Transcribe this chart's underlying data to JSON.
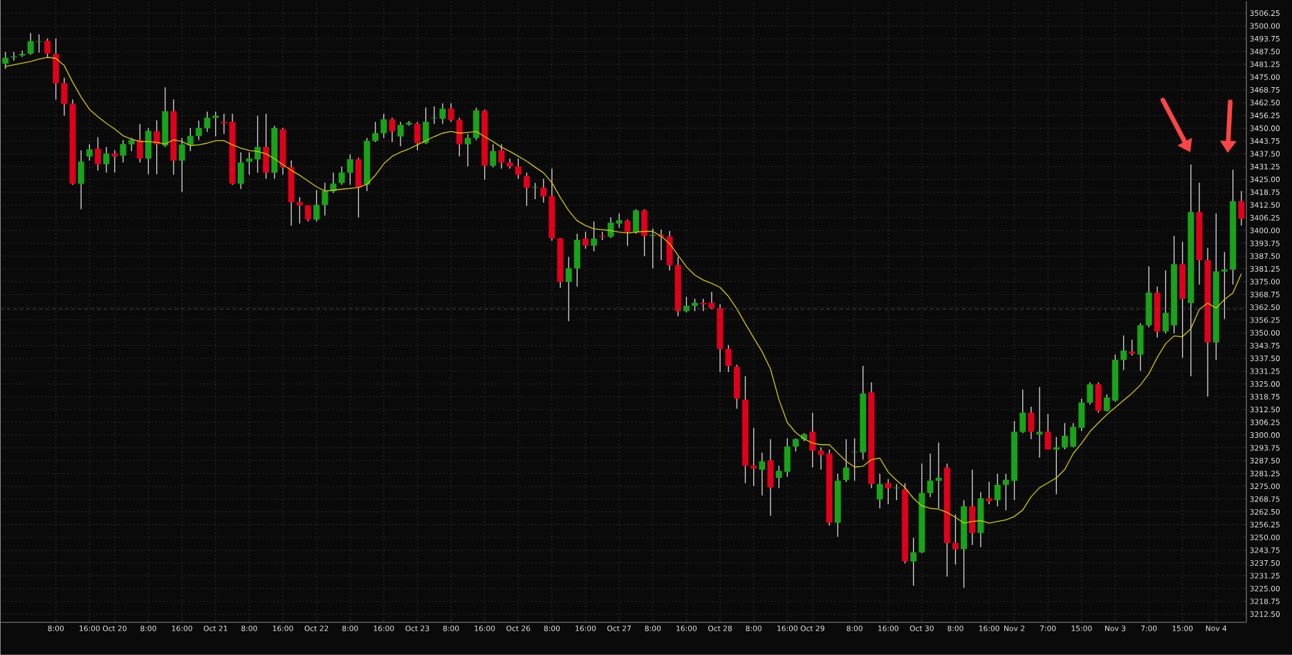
{
  "chart_data": {
    "type": "candlestick",
    "categories": [
      null,
      null,
      null,
      null,
      null,
      null,
      "8:00",
      null,
      null,
      null,
      "16:00",
      null,
      null,
      "Oct 20",
      null,
      null,
      null,
      "8:00",
      null,
      null,
      null,
      "16:00",
      null,
      null,
      null,
      "Oct 21",
      null,
      null,
      null,
      "8:00",
      null,
      null,
      null,
      "16:00",
      null,
      null,
      null,
      "Oct 22",
      null,
      null,
      null,
      "8:00",
      null,
      null,
      null,
      "16:00",
      null,
      null,
      null,
      "Oct 23",
      null,
      null,
      null,
      "8:00",
      null,
      null,
      null,
      "16:00",
      null,
      null,
      null,
      "Oct 26",
      null,
      null,
      null,
      "8:00",
      null,
      null,
      null,
      "16:00",
      null,
      null,
      null,
      "Oct 27",
      null,
      null,
      null,
      "8:00",
      null,
      null,
      null,
      "16:00",
      null,
      null,
      null,
      "Oct 28",
      null,
      null,
      null,
      "8:00",
      null,
      null,
      null,
      "16:00",
      null,
      null,
      "Oct 29",
      null,
      null,
      null,
      null,
      "8:00",
      null,
      null,
      null,
      "16:00",
      null,
      null,
      null,
      "Oct 30",
      null,
      null,
      null,
      "8:00",
      null,
      null,
      null,
      "16:00",
      null,
      null,
      "Nov 2",
      null,
      null,
      null,
      "7:00",
      null,
      null,
      null,
      "15:00",
      null,
      null,
      null,
      "Nov 3",
      null,
      null,
      null,
      "7:00",
      null,
      null,
      null,
      "15:00",
      null,
      null,
      null,
      "Nov 4",
      null,
      null,
      null
    ],
    "ohlc": [
      [
        3481.6,
        3487.3,
        3479.0,
        3484.4
      ],
      [
        3484.6,
        3487.3,
        3483.0,
        3485.0
      ],
      [
        3485.6,
        3487.9,
        3484.9,
        3486.3
      ],
      [
        3486.5,
        3496.5,
        3485.9,
        3492.5
      ],
      [
        3492.3,
        3495.9,
        3486.9,
        3492.5
      ],
      [
        3492.7,
        3493.9,
        3484.4,
        3486.5
      ],
      [
        3486.3,
        3493.9,
        3464.0,
        3472.0
      ],
      [
        3472.0,
        3474.6,
        3456.1,
        3461.9
      ],
      [
        3461.9,
        3464.1,
        3422.3,
        3422.9
      ],
      [
        3422.9,
        3439.2,
        3410.4,
        3433.6
      ],
      [
        3436.2,
        3442.2,
        3434.2,
        3439.6
      ],
      [
        3440.0,
        3445.6,
        3429.3,
        3432.4
      ],
      [
        3432.4,
        3440.8,
        3428.3,
        3437.6
      ],
      [
        3437.6,
        3439.2,
        3428.3,
        3436.2
      ],
      [
        3436.6,
        3444.2,
        3433.2,
        3442.2
      ],
      [
        3442.2,
        3445.2,
        3438.8,
        3444.2
      ],
      [
        3444.2,
        3452.1,
        3433.2,
        3435.2
      ],
      [
        3435.2,
        3450.1,
        3427.5,
        3448.7
      ],
      [
        3448.5,
        3453.9,
        3427.5,
        3442.2
      ],
      [
        3441.6,
        3470.0,
        3440.8,
        3458.3
      ],
      [
        3458.3,
        3464.1,
        3427.3,
        3434.2
      ],
      [
        3434.2,
        3445.2,
        3418.9,
        3442.0
      ],
      [
        3442.0,
        3450.1,
        3438.8,
        3446.2
      ],
      [
        3446.2,
        3453.7,
        3444.2,
        3450.1
      ],
      [
        3450.0,
        3458.1,
        3448.2,
        3455.1
      ],
      [
        3455.1,
        3458.1,
        3446.0,
        3456.1
      ],
      [
        3453.1,
        3457.1,
        3447.2,
        3452.5
      ],
      [
        3453.1,
        3457.1,
        3422.3,
        3422.9
      ],
      [
        3422.9,
        3438.2,
        3420.3,
        3433.2
      ],
      [
        3433.6,
        3438.2,
        3427.3,
        3435.2
      ],
      [
        3434.8,
        3456.1,
        3428.3,
        3440.8
      ],
      [
        3440.8,
        3457.1,
        3425.3,
        3428.3
      ],
      [
        3428.3,
        3451.2,
        3425.3,
        3450.1
      ],
      [
        3449.5,
        3450.1,
        3427.3,
        3430.9
      ],
      [
        3430.9,
        3434.2,
        3402.4,
        3413.9
      ],
      [
        3413.9,
        3416.3,
        3403.4,
        3412.3
      ],
      [
        3412.3,
        3412.3,
        3404.4,
        3405.4
      ],
      [
        3405.4,
        3419.7,
        3404.4,
        3412.5
      ],
      [
        3412.5,
        3423.3,
        3407.4,
        3419.3
      ],
      [
        3419.3,
        3428.3,
        3418.3,
        3422.9
      ],
      [
        3423.3,
        3431.3,
        3422.3,
        3428.3
      ],
      [
        3428.3,
        3437.2,
        3422.3,
        3434.8
      ],
      [
        3434.8,
        3435.6,
        3406.4,
        3421.3
      ],
      [
        3422.5,
        3445.2,
        3419.3,
        3443.8
      ],
      [
        3443.8,
        3453.1,
        3443.2,
        3447.6
      ],
      [
        3447.6,
        3457.1,
        3445.2,
        3454.3
      ],
      [
        3454.3,
        3455.1,
        3443.2,
        3448.5
      ],
      [
        3446.0,
        3453.1,
        3441.2,
        3451.6
      ],
      [
        3451.8,
        3453.5,
        3451.2,
        3452.7
      ],
      [
        3452.1,
        3453.1,
        3439.2,
        3442.8
      ],
      [
        3442.8,
        3460.1,
        3442.2,
        3453.1
      ],
      [
        3454.9,
        3460.7,
        3452.1,
        3455.1
      ],
      [
        3454.7,
        3462.1,
        3452.1,
        3459.5
      ],
      [
        3459.5,
        3462.1,
        3453.1,
        3454.1
      ],
      [
        3454.1,
        3455.1,
        3436.2,
        3442.2
      ],
      [
        3442.2,
        3447.2,
        3431.3,
        3445.2
      ],
      [
        3445.2,
        3460.0,
        3444.2,
        3458.7
      ],
      [
        3458.5,
        3459.1,
        3424.9,
        3431.7
      ],
      [
        3431.7,
        3442.2,
        3430.9,
        3438.8
      ],
      [
        3439.2,
        3442.2,
        3430.3,
        3433.2
      ],
      [
        3433.2,
        3435.2,
        3430.3,
        3431.3
      ],
      [
        3431.3,
        3435.2,
        3425.3,
        3427.3
      ],
      [
        3426.7,
        3428.3,
        3412.0,
        3420.9
      ],
      [
        3420.9,
        3423.3,
        3415.3,
        3421.1
      ],
      [
        3420.9,
        3425.3,
        3413.7,
        3416.7
      ],
      [
        3416.7,
        3430.3,
        3395.0,
        3396.2
      ],
      [
        3396.2,
        3396.4,
        3372.0,
        3374.9
      ],
      [
        3374.9,
        3387.1,
        3355.7,
        3381.5
      ],
      [
        3381.5,
        3398.4,
        3372.6,
        3395.4
      ],
      [
        3396.0,
        3399.4,
        3391.1,
        3392.6
      ],
      [
        3392.6,
        3404.4,
        3389.9,
        3396.0
      ],
      [
        3397.4,
        3399.4,
        3395.4,
        3397.0
      ],
      [
        3397.0,
        3406.4,
        3396.4,
        3403.8
      ],
      [
        3403.4,
        3408.4,
        3401.4,
        3405.0
      ],
      [
        3404.8,
        3405.4,
        3392.5,
        3399.4
      ],
      [
        3399.4,
        3410.4,
        3398.4,
        3409.8
      ],
      [
        3409.8,
        3410.4,
        3387.5,
        3397.4
      ],
      [
        3397.4,
        3401.0,
        3381.5,
        3397.8
      ],
      [
        3397.8,
        3400.4,
        3385.5,
        3397.0
      ],
      [
        3397.0,
        3399.8,
        3380.5,
        3383.1
      ],
      [
        3383.1,
        3387.1,
        3358.1,
        3360.6
      ],
      [
        3360.6,
        3367.6,
        3360.0,
        3363.2
      ],
      [
        3363.2,
        3366.6,
        3360.6,
        3364.6
      ],
      [
        3364.6,
        3366.6,
        3360.6,
        3364.0
      ],
      [
        3364.6,
        3370.0,
        3361.6,
        3362.0
      ],
      [
        3362.0,
        3364.0,
        3330.8,
        3342.1
      ],
      [
        3342.1,
        3344.1,
        3330.8,
        3333.8
      ],
      [
        3333.4,
        3334.4,
        3312.9,
        3317.9
      ],
      [
        3317.3,
        3328.8,
        3276.5,
        3285.1
      ],
      [
        3285.1,
        3303.6,
        3275.1,
        3283.7
      ],
      [
        3283.1,
        3291.4,
        3270.5,
        3287.1
      ],
      [
        3287.7,
        3298.0,
        3260.6,
        3274.5
      ],
      [
        3279.1,
        3285.1,
        3274.1,
        3282.5
      ],
      [
        3282.1,
        3298.4,
        3279.7,
        3294.4
      ],
      [
        3294.4,
        3298.4,
        3292.0,
        3298.0
      ],
      [
        3298.0,
        3301.0,
        3297.0,
        3300.4
      ],
      [
        3301.6,
        3310.9,
        3284.1,
        3292.4
      ],
      [
        3292.4,
        3294.0,
        3283.1,
        3290.4
      ],
      [
        3291.0,
        3293.0,
        3255.8,
        3257.2
      ],
      [
        3257.2,
        3281.1,
        3250.3,
        3277.7
      ],
      [
        3278.1,
        3298.0,
        3277.1,
        3284.1
      ],
      [
        3291.6,
        3298.4,
        3277.7,
        3291.8
      ],
      [
        3291.6,
        3333.8,
        3288.0,
        3320.3
      ],
      [
        3320.9,
        3325.8,
        3274.1,
        3276.1
      ],
      [
        3268.6,
        3281.1,
        3264.2,
        3276.1
      ],
      [
        3276.5,
        3278.5,
        3266.2,
        3274.1
      ],
      [
        3274.1,
        3276.1,
        3268.2,
        3274.3
      ],
      [
        3273.5,
        3276.5,
        3237.3,
        3238.3
      ],
      [
        3238.3,
        3249.8,
        3226.4,
        3242.7
      ],
      [
        3242.7,
        3286.1,
        3242.3,
        3271.7
      ],
      [
        3271.7,
        3291.0,
        3269.7,
        3277.7
      ],
      [
        3277.7,
        3296.4,
        3264.2,
        3279.1
      ],
      [
        3284.1,
        3286.1,
        3230.8,
        3247.3
      ],
      [
        3247.3,
        3261.2,
        3236.7,
        3244.3
      ],
      [
        3244.3,
        3268.2,
        3225.4,
        3265.2
      ],
      [
        3265.2,
        3283.1,
        3246.3,
        3252.2
      ],
      [
        3252.2,
        3272.1,
        3245.3,
        3269.1
      ],
      [
        3269.1,
        3277.1,
        3266.2,
        3267.8
      ],
      [
        3268.2,
        3281.1,
        3265.2,
        3275.7
      ],
      [
        3275.7,
        3281.1,
        3263.2,
        3278.1
      ],
      [
        3277.7,
        3306.9,
        3268.2,
        3301.6
      ],
      [
        3301.6,
        3322.3,
        3301.0,
        3310.9
      ],
      [
        3310.9,
        3313.9,
        3298.0,
        3301.6
      ],
      [
        3300.4,
        3323.5,
        3289.0,
        3301.6
      ],
      [
        3301.6,
        3310.3,
        3293.0,
        3293.0
      ],
      [
        3293.0,
        3299.0,
        3271.1,
        3294.0
      ],
      [
        3294.0,
        3305.9,
        3293.0,
        3299.6
      ],
      [
        3294.4,
        3305.9,
        3294.0,
        3304.0
      ],
      [
        3303.6,
        3317.9,
        3302.0,
        3315.9
      ],
      [
        3315.9,
        3325.8,
        3314.9,
        3324.8
      ],
      [
        3324.8,
        3325.8,
        3310.9,
        3311.9
      ],
      [
        3311.9,
        3319.9,
        3311.5,
        3318.3
      ],
      [
        3316.9,
        3339.4,
        3316.3,
        3336.8
      ],
      [
        3336.8,
        3348.7,
        3331.8,
        3341.3
      ],
      [
        3340.8,
        3346.7,
        3338.8,
        3339.8
      ],
      [
        3339.4,
        3354.7,
        3331.4,
        3353.7
      ],
      [
        3353.7,
        3382.5,
        3352.7,
        3369.6
      ],
      [
        3369.6,
        3372.6,
        3347.7,
        3350.7
      ],
      [
        3350.7,
        3380.5,
        3349.7,
        3359.7
      ],
      [
        3353.7,
        3397.4,
        3349.7,
        3383.5
      ],
      [
        3383.5,
        3394.5,
        3337.8,
        3366.6
      ],
      [
        3364.6,
        3432.2,
        3328.8,
        3409.0
      ],
      [
        3409.0,
        3423.3,
        3373.6,
        3385.5
      ],
      [
        3385.5,
        3391.5,
        3318.9,
        3345.3
      ],
      [
        3345.3,
        3408.4,
        3336.8,
        3380.0
      ],
      [
        3380.0,
        3389.5,
        3356.7,
        3380.9
      ],
      [
        3380.9,
        3429.7,
        3373.6,
        3414.3
      ],
      [
        3414.3,
        3419.3,
        3402.4,
        3405.8
      ]
    ],
    "series": [
      {
        "type": "line",
        "color": "#d6c800",
        "values": [
          3480.2,
          3481.0,
          3481.8,
          3482.6,
          3483.8,
          3484.6,
          3484.2,
          3480.6,
          3472.5,
          3465.3,
          3459.2,
          3455.6,
          3452.4,
          3449.6,
          3446.3,
          3444.7,
          3443.5,
          3443.5,
          3443.1,
          3442.3,
          3444.3,
          3443.5,
          3441.5,
          3441.9,
          3442.7,
          3443.9,
          3443.9,
          3441.9,
          3440.3,
          3439.1,
          3438.7,
          3437.5,
          3435.1,
          3432.2,
          3429.4,
          3427.0,
          3424.2,
          3421.4,
          3419.3,
          3419.7,
          3420.2,
          3420.6,
          3421.0,
          3422.6,
          3427.0,
          3432.6,
          3436.3,
          3438.3,
          3439.9,
          3441.9,
          3443.9,
          3445.9,
          3447.6,
          3448.4,
          3447.6,
          3448.0,
          3448.4,
          3445.9,
          3443.5,
          3440.7,
          3438.7,
          3436.3,
          3433.9,
          3431.0,
          3428.2,
          3423.4,
          3416.1,
          3409.7,
          3404.8,
          3402.4,
          3400.8,
          3400.4,
          3400.0,
          3399.2,
          3398.8,
          3399.2,
          3399.6,
          3399.6,
          3397.2,
          3393.6,
          3387.9,
          3382.3,
          3378.2,
          3375.8,
          3374.2,
          3372.2,
          3367.8,
          3361.7,
          3354.5,
          3347.6,
          3340.8,
          3332.3,
          3317.4,
          3306.1,
          3301.3,
          3298.1,
          3296.1,
          3295.3,
          3295.3,
          3291.2,
          3287.2,
          3284.4,
          3284.8,
          3288.0,
          3288.8,
          3281.9,
          3277.9,
          3274.3,
          3269.1,
          3265.4,
          3264.2,
          3263.8,
          3262.2,
          3259.8,
          3257.0,
          3257.8,
          3258.2,
          3257.0,
          3257.8,
          3258.6,
          3260.2,
          3263.4,
          3269.9,
          3274.3,
          3276.7,
          3279.1,
          3283.2,
          3291.0,
          3296.0,
          3301.8,
          3306.0,
          3310.0,
          3313.5,
          3317.0,
          3320.5,
          3324.5,
          3330.0,
          3338.0,
          3344.7,
          3348.5,
          3348.1,
          3352.0,
          3361.5,
          3364.5,
          3362.0,
          3366.3,
          3369.5,
          3378.9
        ]
      }
    ],
    "ylim": [
      3208.5,
      3512.0
    ],
    "yticks": [
      {
        "value": 3212.5,
        "label": "3212.50"
      },
      {
        "value": 3218.75,
        "label": "3218.75"
      },
      {
        "value": 3225,
        "label": "3225.00"
      },
      {
        "value": 3231.25,
        "label": "3231.25"
      },
      {
        "value": 3237.5,
        "label": "3237.50"
      },
      {
        "value": 3243.75,
        "label": "3243.75"
      },
      {
        "value": 3250,
        "label": "3250.00"
      },
      {
        "value": 3256.25,
        "label": "3256.25"
      },
      {
        "value": 3262.5,
        "label": "3262.50"
      },
      {
        "value": 3268.75,
        "label": "3268.75"
      },
      {
        "value": 3275,
        "label": "3275.00"
      },
      {
        "value": 3281.25,
        "label": "3281.25"
      },
      {
        "value": 3287.5,
        "label": "3287.50"
      },
      {
        "value": 3293.75,
        "label": "3293.75"
      },
      {
        "value": 3300,
        "label": "3300.00"
      },
      {
        "value": 3306.25,
        "label": "3306.25"
      },
      {
        "value": 3312.5,
        "label": "3312.50"
      },
      {
        "value": 3318.75,
        "label": "3318.75"
      },
      {
        "value": 3325,
        "label": "3325.00"
      },
      {
        "value": 3331.25,
        "label": "3331.25"
      },
      {
        "value": 3337.5,
        "label": "3337.50"
      },
      {
        "value": 3343.75,
        "label": "3343.75"
      },
      {
        "value": 3350,
        "label": "3350.00"
      },
      {
        "value": 3356.25,
        "label": "3356.25"
      },
      {
        "value": 3362.5,
        "label": "3362.50"
      },
      {
        "value": 3368.75,
        "label": "3368.75"
      },
      {
        "value": 3375,
        "label": "3375.00"
      },
      {
        "value": 3381.25,
        "label": "3381.25"
      },
      {
        "value": 3387.5,
        "label": "3387.50"
      },
      {
        "value": 3393.75,
        "label": "3393.75"
      },
      {
        "value": 3400,
        "label": "3400.00"
      },
      {
        "value": 3406.25,
        "label": "3406.25"
      },
      {
        "value": 3412.5,
        "label": "3412.50"
      },
      {
        "value": 3418.75,
        "label": "3418.75"
      },
      {
        "value": 3425,
        "label": "3425.00"
      },
      {
        "value": 3431.25,
        "label": "3431.25"
      },
      {
        "value": 3437.5,
        "label": "3437.50"
      },
      {
        "value": 3443.75,
        "label": "3443.75"
      },
      {
        "value": 3450,
        "label": "3450.00"
      },
      {
        "value": 3456.25,
        "label": "3456.25"
      },
      {
        "value": 3462.5,
        "label": "3462.50"
      },
      {
        "value": 3468.75,
        "label": "3468.75"
      },
      {
        "value": 3475,
        "label": "3475.00"
      },
      {
        "value": 3481.25,
        "label": "3481.25"
      },
      {
        "value": 3487.5,
        "label": "3487.50"
      },
      {
        "value": 3493.75,
        "label": "3493.75"
      },
      {
        "value": 3500,
        "label": "3500.00"
      },
      {
        "value": 3506.25,
        "label": "3506.25"
      }
    ],
    "grid": true,
    "ref_lines": [
      {
        "axis": "y",
        "value": 3361.6,
        "color": "#5c5c5c",
        "line_style": "dashed"
      }
    ]
  }
}
